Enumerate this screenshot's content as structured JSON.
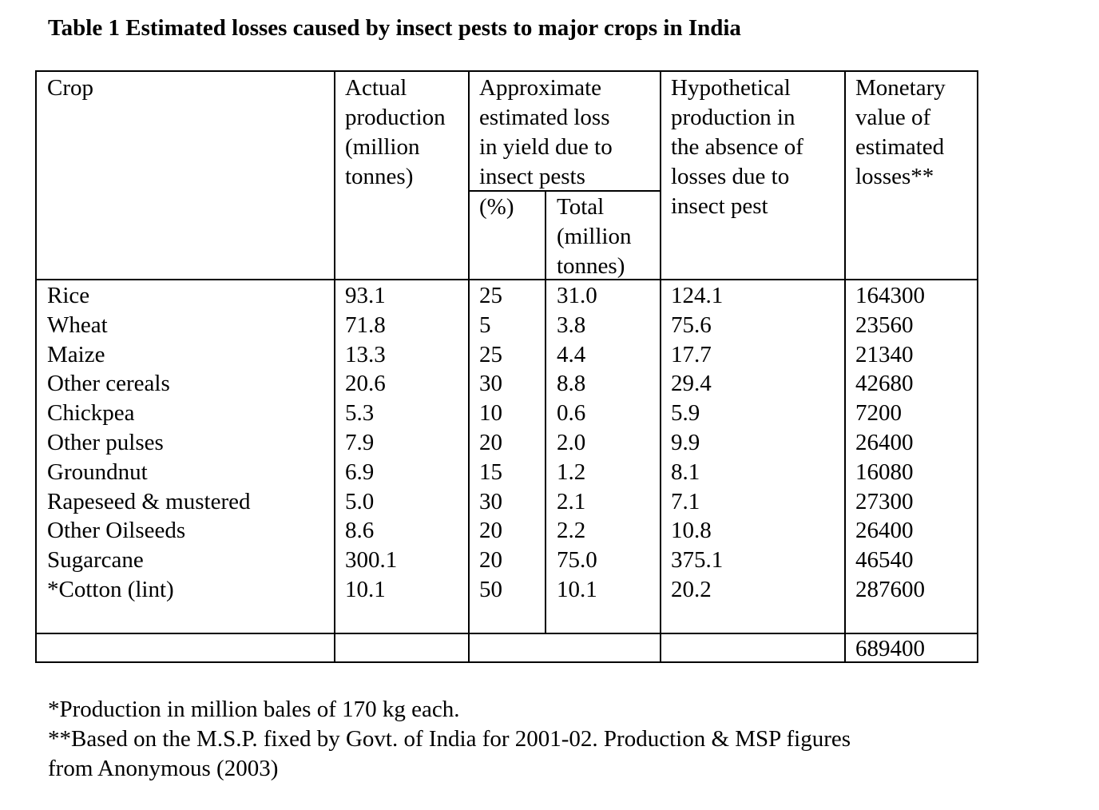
{
  "title": "Table 1 Estimated losses caused by insect pests to major crops in India",
  "headers": {
    "crop": "Crop",
    "actual": [
      "Actual",
      "production",
      "(million",
      "tonnes)"
    ],
    "approx": [
      "Approximate",
      "estimated loss",
      "in yield due to",
      "insect pests"
    ],
    "pct": "(%)",
    "total": [
      "Total",
      "(million",
      "tonnes)"
    ],
    "hypo": [
      "Hypothetical",
      "production in",
      "the absence of",
      "losses due to",
      "insect pest"
    ],
    "monetary": [
      "Monetary",
      "value of",
      "estimated",
      "losses**"
    ]
  },
  "rows": [
    {
      "crop": "Rice",
      "actual": "93.1",
      "pct": "25",
      "total": "31.0",
      "hypo": "124.1",
      "monetary": "164300"
    },
    {
      "crop": "Wheat",
      "actual": "71.8",
      "pct": "5",
      "total": "3.8",
      "hypo": "75.6",
      "monetary": "23560"
    },
    {
      "crop": "Maize",
      "actual": "13.3",
      "pct": "25",
      "total": "4.4",
      "hypo": "17.7",
      "monetary": "21340"
    },
    {
      "crop": "Other cereals",
      "actual": "20.6",
      "pct": "30",
      "total": "8.8",
      "hypo": "29.4",
      "monetary": "42680"
    },
    {
      "crop": "Chickpea",
      "actual": "5.3",
      "pct": "10",
      "total": "0.6",
      "hypo": "5.9",
      "monetary": "7200"
    },
    {
      "crop": "Other pulses",
      "actual": "7.9",
      "pct": "20",
      "total": "2.0",
      "hypo": "9.9",
      "monetary": "26400"
    },
    {
      "crop": "Groundnut",
      "actual": "6.9",
      "pct": "15",
      "total": "1.2",
      "hypo": "8.1",
      "monetary": "16080"
    },
    {
      "crop": "Rapeseed & mustered",
      "actual": "5.0",
      "pct": "30",
      "total": "2.1",
      "hypo": "7.1",
      "monetary": "27300"
    },
    {
      "crop": "Other Oilseeds",
      "actual": "8.6",
      "pct": "20",
      "total": "2.2",
      "hypo": "10.8",
      "monetary": "26400"
    },
    {
      "crop": "Sugarcane",
      "actual": "300.1",
      "pct": "20",
      "total": "75.0",
      "hypo": "375.1",
      "monetary": "46540"
    },
    {
      "crop": "*Cotton (lint)",
      "actual": "10.1",
      "pct": "50",
      "total": "10.1",
      "hypo": "20.2",
      "monetary": "287600"
    }
  ],
  "total_monetary": "689400",
  "footnotes": [
    "*Production in million bales of 170 kg each.",
    "**Based on the M.S.P. fixed by Govt. of India for 2001-02. Production & MSP figures",
    "from Anonymous (2003)"
  ]
}
